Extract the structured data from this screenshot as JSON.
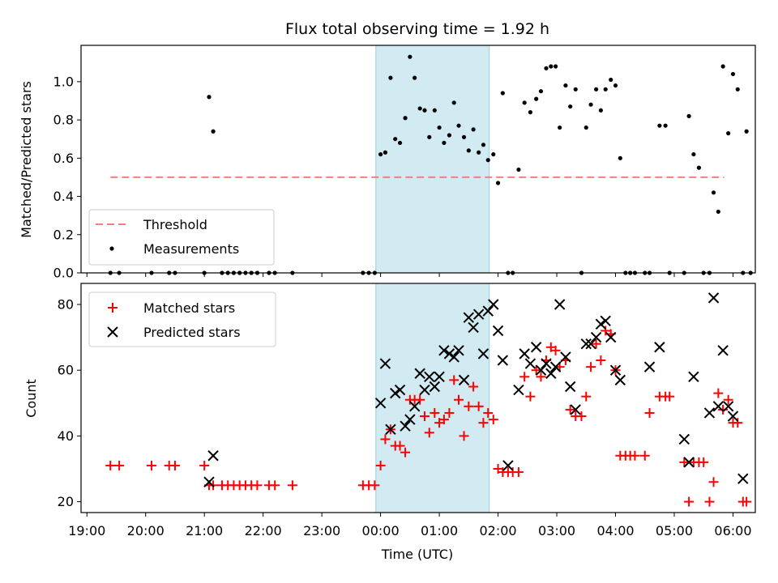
{
  "chart_data": [
    {
      "type": "scatter",
      "title": "Flux total observing time = 1.92 h",
      "xlabel": "",
      "ylabel": "Matched/Predicted stars",
      "ylim": [
        0,
        1.19
      ],
      "yticks": [
        0.0,
        0.2,
        0.4,
        0.6,
        0.8,
        1.0
      ],
      "ytick_labels": [
        "0.0",
        "0.2",
        "0.4",
        "0.6",
        "0.8",
        "1.0"
      ],
      "xlim_hours": [
        18.9,
        30.38
      ],
      "threshold": {
        "name": "Threshold",
        "value": 0.5,
        "x_range": [
          19.4,
          29.85
        ],
        "color": "#f08080"
      },
      "shaded_span": {
        "start": 23.92,
        "end": 25.85,
        "color": "#add8e6"
      },
      "legend": {
        "position": "lower-left",
        "entries": [
          "Threshold",
          "Measurements"
        ]
      },
      "series": [
        {
          "name": "Measurements",
          "color": "#000000",
          "marker": "dot",
          "points": [
            [
              19.4,
              0
            ],
            [
              19.55,
              0
            ],
            [
              20.1,
              0
            ],
            [
              20.4,
              0
            ],
            [
              20.5,
              0
            ],
            [
              21.0,
              0
            ],
            [
              21.08,
              0.92
            ],
            [
              21.15,
              0.74
            ],
            [
              21.3,
              0
            ],
            [
              21.4,
              0
            ],
            [
              21.5,
              0
            ],
            [
              21.6,
              0
            ],
            [
              21.7,
              0
            ],
            [
              21.8,
              0
            ],
            [
              21.9,
              0
            ],
            [
              22.1,
              0
            ],
            [
              22.2,
              0
            ],
            [
              22.5,
              0
            ],
            [
              23.7,
              0
            ],
            [
              23.8,
              0
            ],
            [
              23.9,
              0
            ],
            [
              24.0,
              0.62
            ],
            [
              24.08,
              0.63
            ],
            [
              24.17,
              1.02
            ],
            [
              24.25,
              0.7
            ],
            [
              24.33,
              0.68
            ],
            [
              24.42,
              0.81
            ],
            [
              24.5,
              1.13
            ],
            [
              24.58,
              1.02
            ],
            [
              24.67,
              0.86
            ],
            [
              24.75,
              0.85
            ],
            [
              24.83,
              0.71
            ],
            [
              24.92,
              0.85
            ],
            [
              25.0,
              0.76
            ],
            [
              25.08,
              0.68
            ],
            [
              25.17,
              0.72
            ],
            [
              25.25,
              0.89
            ],
            [
              25.33,
              0.77
            ],
            [
              25.42,
              0.71
            ],
            [
              25.5,
              0.64
            ],
            [
              25.58,
              0.75
            ],
            [
              25.67,
              0.63
            ],
            [
              25.75,
              0.67
            ],
            [
              25.83,
              0.59
            ],
            [
              25.92,
              0.62
            ],
            [
              26.0,
              0.47
            ],
            [
              26.08,
              0.94
            ],
            [
              26.17,
              0
            ],
            [
              26.25,
              0
            ],
            [
              26.35,
              0.54
            ],
            [
              26.45,
              0.89
            ],
            [
              26.55,
              0.84
            ],
            [
              26.65,
              0.91
            ],
            [
              26.73,
              0.95
            ],
            [
              26.82,
              1.07
            ],
            [
              26.9,
              1.08
            ],
            [
              26.98,
              1.08
            ],
            [
              27.05,
              0.76
            ],
            [
              27.15,
              0.98
            ],
            [
              27.23,
              0.87
            ],
            [
              27.32,
              0.96
            ],
            [
              27.42,
              0
            ],
            [
              27.5,
              0.76
            ],
            [
              27.58,
              0.88
            ],
            [
              27.67,
              0.96
            ],
            [
              27.75,
              0.85
            ],
            [
              27.83,
              0.96
            ],
            [
              27.92,
              1.01
            ],
            [
              28.0,
              0.98
            ],
            [
              28.08,
              0.6
            ],
            [
              28.17,
              0
            ],
            [
              28.25,
              0
            ],
            [
              28.33,
              0
            ],
            [
              28.5,
              0
            ],
            [
              28.58,
              0
            ],
            [
              28.75,
              0.77
            ],
            [
              28.85,
              0.77
            ],
            [
              28.92,
              0
            ],
            [
              29.17,
              0
            ],
            [
              29.25,
              0.82
            ],
            [
              29.33,
              0.62
            ],
            [
              29.42,
              0.55
            ],
            [
              29.5,
              0
            ],
            [
              29.6,
              0
            ],
            [
              29.67,
              0.42
            ],
            [
              29.75,
              0.32
            ],
            [
              29.83,
              1.08
            ],
            [
              29.92,
              0.73
            ],
            [
              30.0,
              1.04
            ],
            [
              30.08,
              0.96
            ],
            [
              30.17,
              0
            ],
            [
              30.23,
              0.74
            ],
            [
              30.3,
              0
            ]
          ]
        }
      ]
    },
    {
      "type": "scatter",
      "title": "",
      "xlabel": "Time (UTC)",
      "ylabel": "Count",
      "ylim": [
        16.7,
        86.4
      ],
      "yticks": [
        20,
        40,
        60,
        80
      ],
      "ytick_labels": [
        "20",
        "40",
        "60",
        "80"
      ],
      "xlim_hours": [
        18.9,
        30.38
      ],
      "xticks_hours": [
        19,
        20,
        21,
        22,
        23,
        24,
        25,
        26,
        27,
        28,
        29,
        30
      ],
      "xtick_labels": [
        "19:00",
        "20:00",
        "21:00",
        "22:00",
        "23:00",
        "00:00",
        "01:00",
        "02:00",
        "03:00",
        "04:00",
        "05:00",
        "06:00"
      ],
      "shaded_span": {
        "start": 23.92,
        "end": 25.85,
        "color": "#add8e6"
      },
      "legend": {
        "position": "top-left",
        "entries": [
          "Matched stars",
          "Predicted stars"
        ]
      },
      "series": [
        {
          "name": "Matched stars",
          "color": "#ff0000",
          "marker": "plus",
          "points": [
            [
              19.4,
              31
            ],
            [
              19.55,
              31
            ],
            [
              20.1,
              31
            ],
            [
              20.4,
              31
            ],
            [
              20.5,
              31
            ],
            [
              21.0,
              31
            ],
            [
              21.08,
              25
            ],
            [
              21.15,
              25
            ],
            [
              21.3,
              25
            ],
            [
              21.4,
              25
            ],
            [
              21.5,
              25
            ],
            [
              21.6,
              25
            ],
            [
              21.7,
              25
            ],
            [
              21.8,
              25
            ],
            [
              21.9,
              25
            ],
            [
              22.1,
              25
            ],
            [
              22.2,
              25
            ],
            [
              22.5,
              25
            ],
            [
              23.7,
              25
            ],
            [
              23.8,
              25
            ],
            [
              23.9,
              25
            ],
            [
              24.0,
              31
            ],
            [
              24.08,
              39
            ],
            [
              24.17,
              42
            ],
            [
              24.25,
              37
            ],
            [
              24.33,
              37
            ],
            [
              24.42,
              35
            ],
            [
              24.5,
              51
            ],
            [
              24.58,
              51
            ],
            [
              24.67,
              51
            ],
            [
              24.75,
              46
            ],
            [
              24.83,
              41
            ],
            [
              24.92,
              47
            ],
            [
              25.0,
              44
            ],
            [
              25.08,
              45
            ],
            [
              25.17,
              47
            ],
            [
              25.25,
              57
            ],
            [
              25.33,
              51
            ],
            [
              25.42,
              40
            ],
            [
              25.5,
              49
            ],
            [
              25.58,
              55
            ],
            [
              25.67,
              49
            ],
            [
              25.75,
              44
            ],
            [
              25.83,
              47
            ],
            [
              25.92,
              45
            ],
            [
              26.0,
              30
            ],
            [
              26.08,
              29
            ],
            [
              26.17,
              29
            ],
            [
              26.25,
              29
            ],
            [
              26.35,
              29
            ],
            [
              26.45,
              58
            ],
            [
              26.55,
              52
            ],
            [
              26.65,
              60
            ],
            [
              26.73,
              58
            ],
            [
              26.82,
              63
            ],
            [
              26.9,
              67
            ],
            [
              26.98,
              66
            ],
            [
              27.05,
              61
            ],
            [
              27.15,
              63
            ],
            [
              27.23,
              48
            ],
            [
              27.32,
              46
            ],
            [
              27.42,
              46
            ],
            [
              27.5,
              52
            ],
            [
              27.58,
              61
            ],
            [
              27.67,
              68
            ],
            [
              27.75,
              63
            ],
            [
              27.83,
              72
            ],
            [
              27.92,
              71
            ],
            [
              28.0,
              60
            ],
            [
              28.08,
              34
            ],
            [
              28.17,
              34
            ],
            [
              28.25,
              34
            ],
            [
              28.33,
              34
            ],
            [
              28.5,
              34
            ],
            [
              28.58,
              47
            ],
            [
              28.75,
              52
            ],
            [
              28.85,
              52
            ],
            [
              28.92,
              52
            ],
            [
              29.17,
              32
            ],
            [
              29.25,
              20
            ],
            [
              29.33,
              32
            ],
            [
              29.42,
              32
            ],
            [
              29.5,
              32
            ],
            [
              29.6,
              20
            ],
            [
              29.67,
              26
            ],
            [
              29.75,
              53
            ],
            [
              29.83,
              48
            ],
            [
              29.92,
              51
            ],
            [
              30.0,
              44
            ],
            [
              30.08,
              44
            ],
            [
              30.17,
              20
            ],
            [
              30.23,
              20
            ]
          ]
        },
        {
          "name": "Predicted stars",
          "color": "#000000",
          "marker": "x",
          "points": [
            [
              21.08,
              26
            ],
            [
              21.15,
              34
            ],
            [
              24.0,
              50
            ],
            [
              24.08,
              62
            ],
            [
              24.17,
              42
            ],
            [
              24.25,
              53
            ],
            [
              24.33,
              54
            ],
            [
              24.42,
              43
            ],
            [
              24.5,
              45
            ],
            [
              24.58,
              49
            ],
            [
              24.67,
              59
            ],
            [
              24.75,
              54
            ],
            [
              24.83,
              58
            ],
            [
              24.92,
              55
            ],
            [
              25.0,
              58
            ],
            [
              25.08,
              66
            ],
            [
              25.17,
              65
            ],
            [
              25.25,
              64
            ],
            [
              25.33,
              66
            ],
            [
              25.42,
              57
            ],
            [
              25.5,
              76
            ],
            [
              25.58,
              73
            ],
            [
              25.67,
              77
            ],
            [
              25.75,
              65
            ],
            [
              25.83,
              78
            ],
            [
              25.92,
              80
            ],
            [
              26.0,
              72
            ],
            [
              26.08,
              63
            ],
            [
              26.17,
              31
            ],
            [
              26.35,
              54
            ],
            [
              26.45,
              65
            ],
            [
              26.55,
              62
            ],
            [
              26.65,
              67
            ],
            [
              26.73,
              60
            ],
            [
              26.82,
              62
            ],
            [
              26.9,
              59
            ],
            [
              26.98,
              61
            ],
            [
              27.05,
              80
            ],
            [
              27.15,
              64
            ],
            [
              27.23,
              55
            ],
            [
              27.32,
              48
            ],
            [
              27.5,
              68
            ],
            [
              27.58,
              68
            ],
            [
              27.67,
              70
            ],
            [
              27.75,
              74
            ],
            [
              27.83,
              75
            ],
            [
              27.92,
              70
            ],
            [
              28.0,
              60
            ],
            [
              28.08,
              57
            ],
            [
              28.58,
              61
            ],
            [
              28.75,
              67
            ],
            [
              29.17,
              39
            ],
            [
              29.25,
              32
            ],
            [
              29.33,
              58
            ],
            [
              29.6,
              47
            ],
            [
              29.67,
              82
            ],
            [
              29.75,
              49
            ],
            [
              29.83,
              66
            ],
            [
              29.92,
              49
            ],
            [
              30.0,
              46
            ],
            [
              30.17,
              27
            ]
          ]
        }
      ]
    }
  ]
}
